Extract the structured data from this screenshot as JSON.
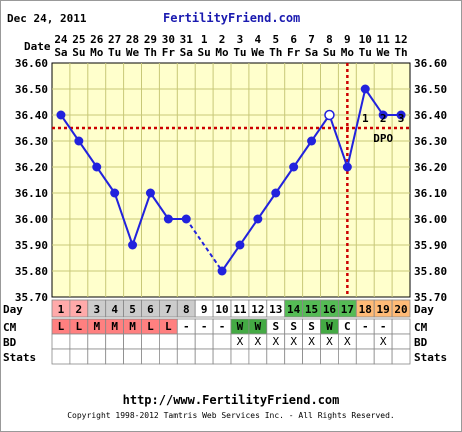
{
  "header": {
    "date": "Dec 24, 2011",
    "brand": "FertilityFriend.com"
  },
  "footer": {
    "url": "http://www.FertilityFriend.com",
    "copyright": "Copyright 1998-2012 Tamtris Web Services Inc. - All Rights Reserved."
  },
  "row_labels": {
    "date": "Date",
    "day": "Day",
    "cm": "CM",
    "bd": "BD",
    "stats": "Stats"
  },
  "dpo_label": "DPO",
  "colors": {
    "line": "#2222dd",
    "coverline": "#cc0000",
    "grid": "#c8c878",
    "plot_bg": "#ffffcc",
    "fertile": "#55bb55",
    "luteal": "#ffbb77",
    "menses": "#ffaaaa",
    "cycle_start": "#cccccc"
  },
  "chart_data": {
    "type": "line",
    "title": "",
    "xlabel": "Day",
    "ylabel": "",
    "ylim": [
      35.7,
      36.6
    ],
    "yticks": [
      "36.60",
      "36.50",
      "36.40",
      "36.30",
      "36.20",
      "36.10",
      "36.00",
      "35.90",
      "35.80",
      "35.70"
    ],
    "dates": [
      "24",
      "25",
      "26",
      "27",
      "28",
      "29",
      "30",
      "31",
      "1",
      "2",
      "3",
      "4",
      "5",
      "6",
      "7",
      "8",
      "9",
      "10",
      "11",
      "12"
    ],
    "weekdays": [
      "Sa",
      "Su",
      "Mo",
      "Tu",
      "We",
      "Th",
      "Fr",
      "Sa",
      "Su",
      "Mo",
      "Tu",
      "We",
      "Th",
      "Fr",
      "Sa",
      "Su",
      "Mo",
      "Tu",
      "We",
      "Th"
    ],
    "days": [
      "1",
      "2",
      "3",
      "4",
      "5",
      "6",
      "7",
      "8",
      "9",
      "10",
      "11",
      "12",
      "13",
      "14",
      "15",
      "16",
      "17",
      "18",
      "19",
      "20"
    ],
    "series": [
      {
        "values": [
          36.4,
          36.3,
          36.2,
          36.1,
          35.9,
          36.1,
          36.0,
          36.0,
          null,
          35.8,
          35.9,
          36.0,
          36.1,
          36.2,
          36.3,
          36.4,
          36.2,
          36.5,
          36.4,
          36.4
        ]
      }
    ],
    "discarded_temp_day": 16,
    "coverline": 36.35,
    "ovulation_day": 17,
    "dpo": [
      "1",
      "2",
      "3"
    ],
    "cm": [
      "L",
      "L",
      "M",
      "M",
      "M",
      "L",
      "L",
      "-",
      "-",
      "-",
      "W",
      "W",
      "S",
      "S",
      "S",
      "W",
      "C",
      "-",
      "-",
      ""
    ],
    "bd": [
      "",
      "",
      "",
      "",
      "",
      "",
      "",
      "",
      "",
      "",
      "X",
      "X",
      "X",
      "X",
      "X",
      "X",
      "X",
      "",
      "X",
      ""
    ],
    "day_phase": [
      "menses",
      "menses",
      "cycle-start",
      "cycle-start",
      "cycle-start",
      "cycle-start",
      "cycle-start",
      "cycle-start",
      "none",
      "none",
      "none",
      "none",
      "none",
      "fertile",
      "fertile",
      "fertile",
      "fertile",
      "luteal",
      "luteal",
      "luteal"
    ],
    "cm_colors": {
      "L": "#ff8080",
      "M": "#ff8080",
      "W": "#44aa44"
    }
  }
}
